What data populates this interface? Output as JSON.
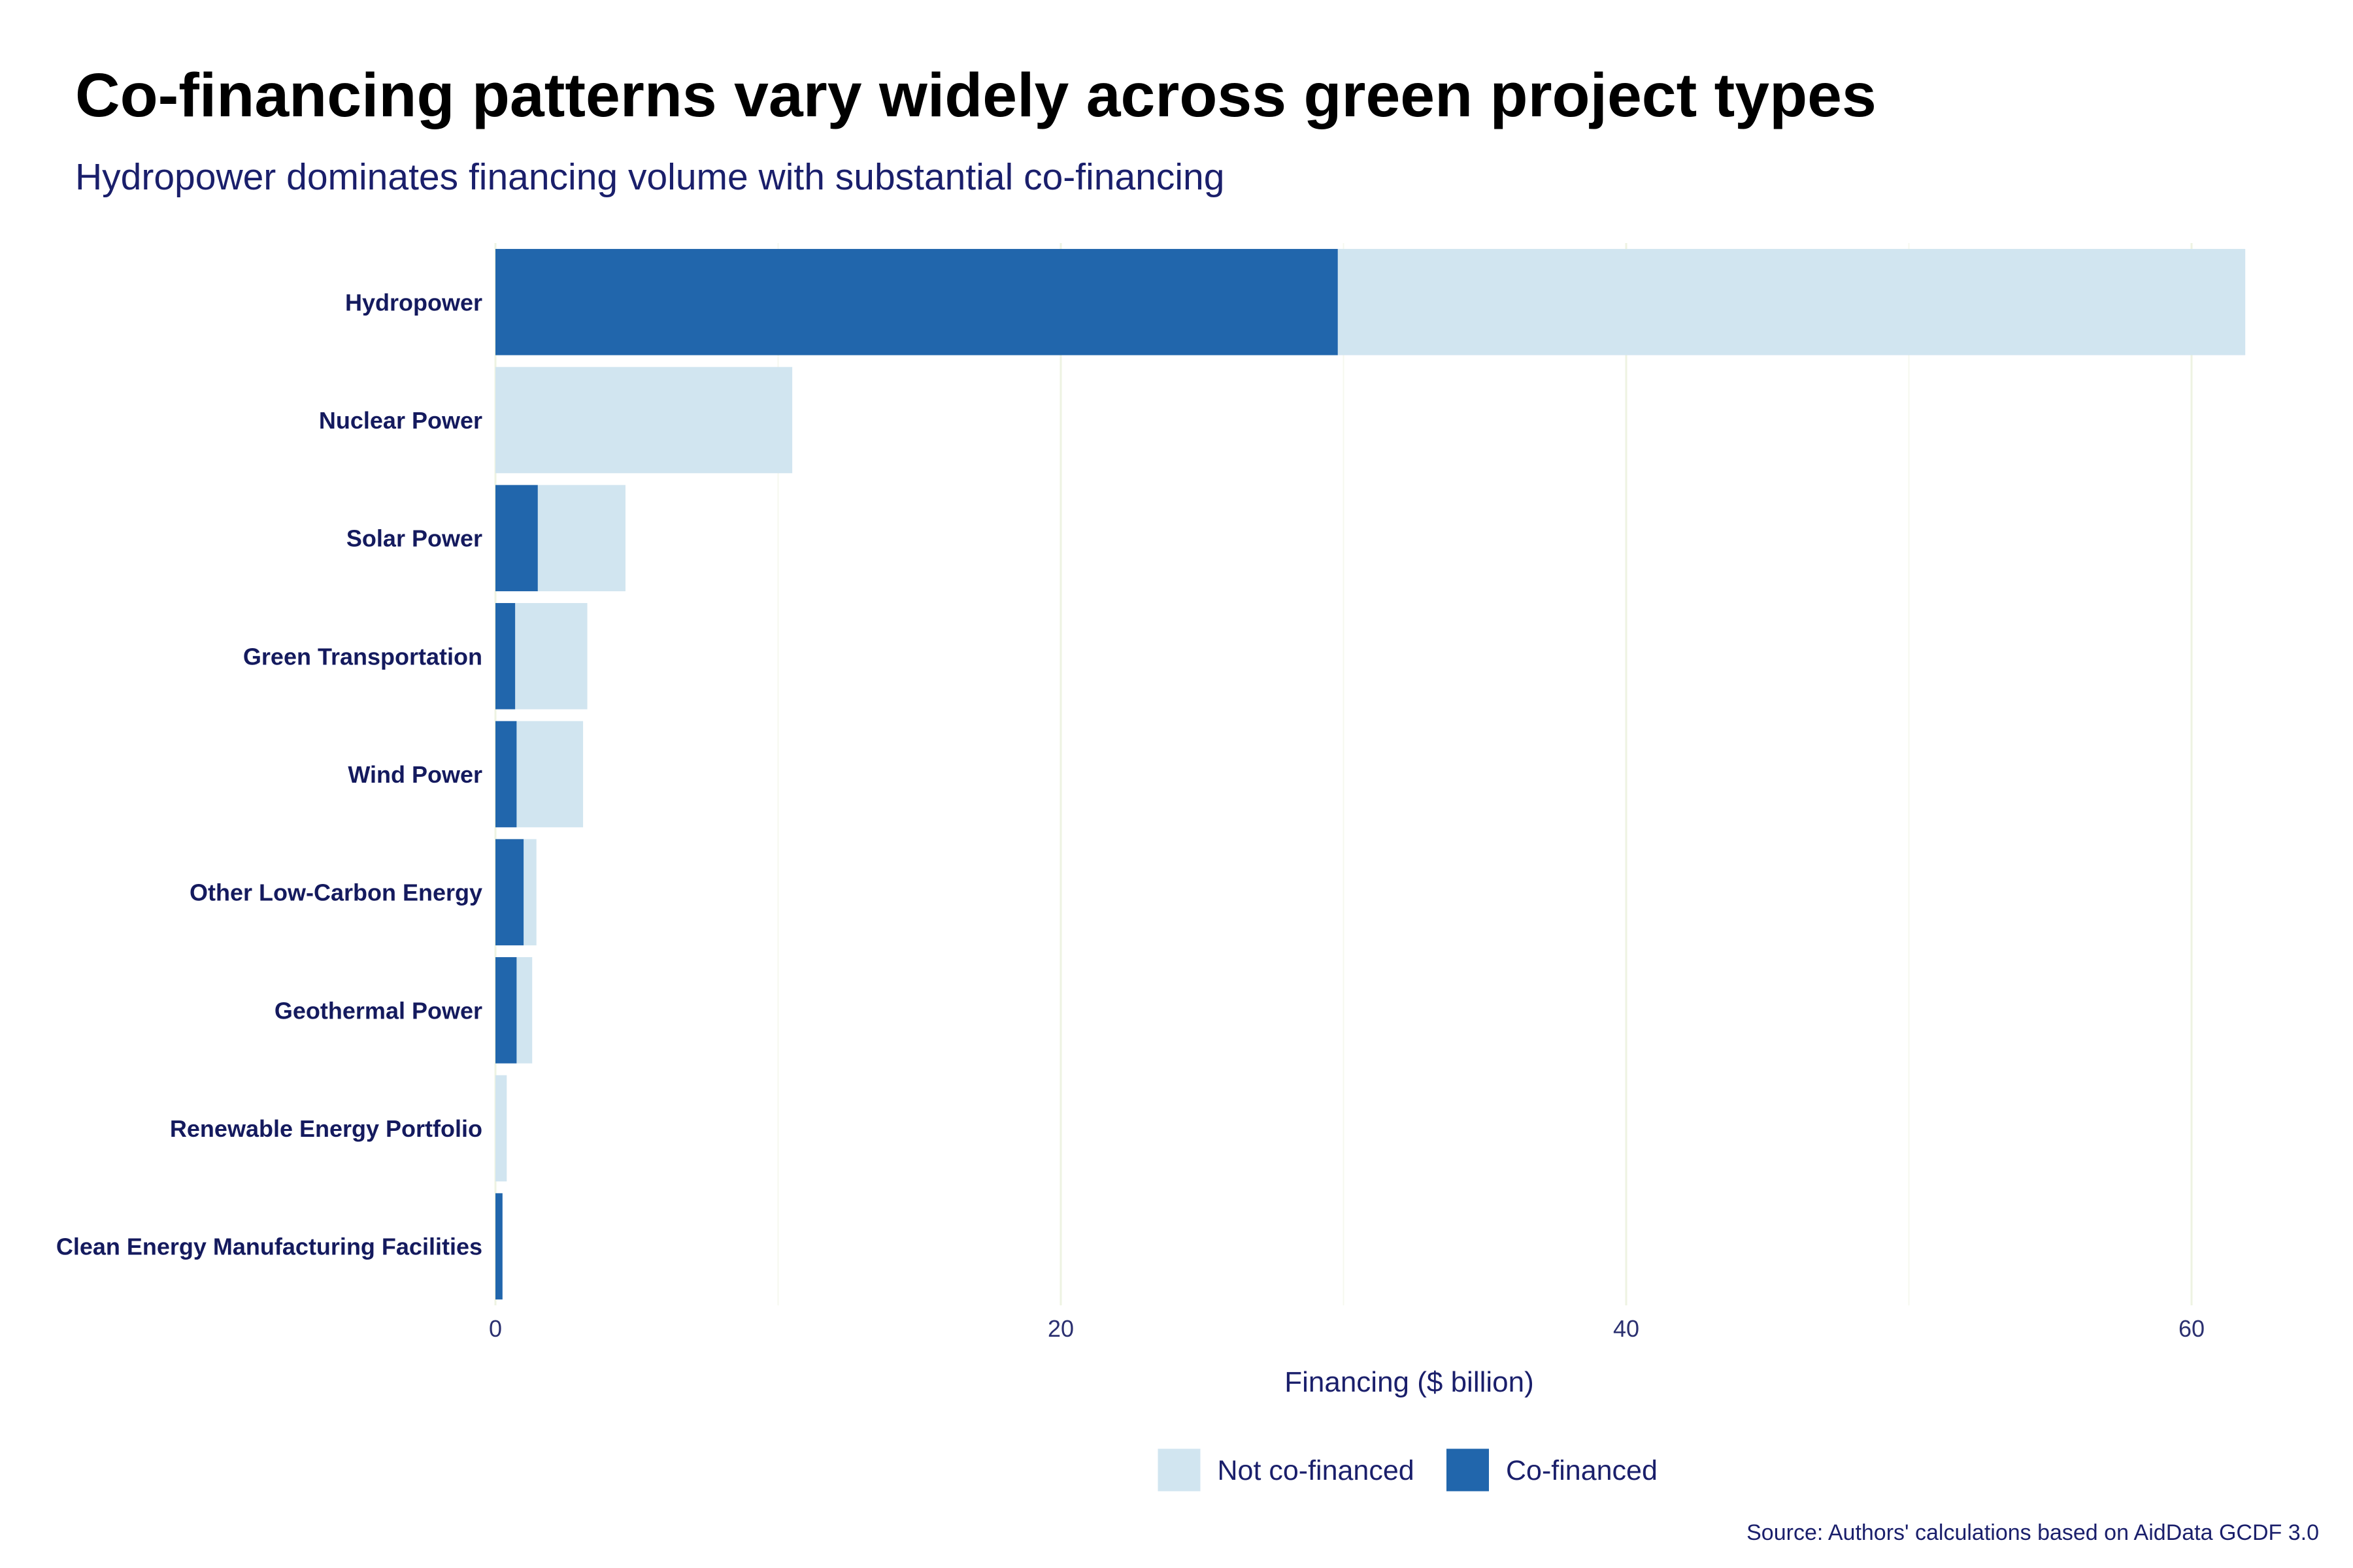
{
  "chart_data": {
    "type": "bar",
    "orientation": "horizontal",
    "stacked": true,
    "title": "Co-financing patterns vary widely across green project types",
    "subtitle": "Hydropower dominates financing volume with substantial co-financing",
    "xlabel": "Financing ($ billion)",
    "ylabel": "",
    "xlim": [
      0,
      62
    ],
    "x_ticks": [
      "0",
      "20",
      "40",
      "60"
    ],
    "x_tick_values": [
      0,
      20,
      40,
      60
    ],
    "grid": true,
    "legend_position": "bottom",
    "categories": [
      "Hydropower",
      "Nuclear Power",
      "Solar Power",
      "Green Transportation",
      "Wind Power",
      "Other Low-Carbon Energy",
      "Geothermal Power",
      "Renewable Energy Portfolio",
      "Clean Energy Manufacturing Facilities"
    ],
    "series": [
      {
        "name": "Co-financed",
        "color": "#2166ac",
        "values": [
          29.8,
          0,
          1.5,
          0.7,
          0.75,
          1.0,
          0.75,
          0,
          0.25
        ]
      },
      {
        "name": "Not co-financed",
        "color": "#d1e5f0",
        "values": [
          32.1,
          10.5,
          3.1,
          2.55,
          2.35,
          0.45,
          0.55,
          0.4,
          0
        ]
      }
    ],
    "legend": [
      {
        "name": "Not co-financed",
        "color": "#d1e5f0"
      },
      {
        "name": "Co-financed",
        "color": "#2166ac"
      }
    ],
    "caption": "Source: Authors' calculations based on AidData GCDF 3.0"
  }
}
